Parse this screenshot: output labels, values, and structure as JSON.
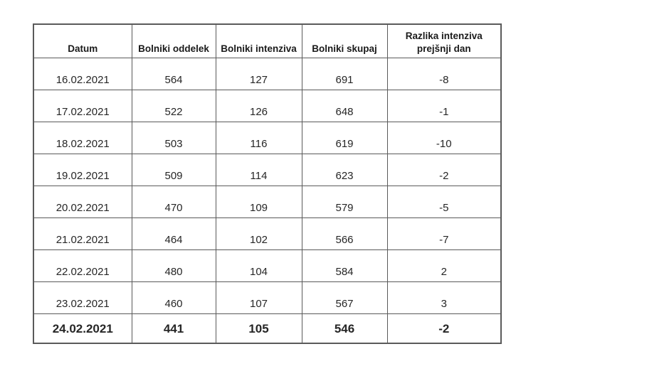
{
  "colors": {
    "ward_blue": "#4472C4",
    "icu_orange": "#ED7D31",
    "total_green": "#70AD47",
    "text_black": "#262626",
    "border_gray": "#5a5a5a"
  },
  "table": {
    "headers": [
      "Datum",
      "Bolniki oddelek",
      "Bolniki intenziva",
      "Bolniki skupaj",
      "Razlika intenziva prejšnji dan"
    ],
    "rows": [
      {
        "bold": false,
        "cells": [
          "16.02.2021",
          "564",
          "127",
          "691",
          "-8"
        ]
      },
      {
        "bold": false,
        "cells": [
          "17.02.2021",
          "522",
          "126",
          "648",
          "-1"
        ]
      },
      {
        "bold": false,
        "cells": [
          "18.02.2021",
          "503",
          "116",
          "619",
          "-10"
        ]
      },
      {
        "bold": false,
        "cells": [
          "19.02.2021",
          "509",
          "114",
          "623",
          "-2"
        ]
      },
      {
        "bold": false,
        "cells": [
          "20.02.2021",
          "470",
          "109",
          "579",
          "-5"
        ]
      },
      {
        "bold": false,
        "cells": [
          "21.02.2021",
          "464",
          "102",
          "566",
          "-7"
        ]
      },
      {
        "bold": false,
        "cells": [
          "22.02.2021",
          "480",
          "104",
          "584",
          "2"
        ]
      },
      {
        "bold": false,
        "cells": [
          "23.02.2021",
          "460",
          "107",
          "567",
          "3"
        ]
      },
      {
        "bold": true,
        "cells": [
          "24.02.2021",
          "441",
          "105",
          "546",
          "-2"
        ]
      }
    ]
  }
}
